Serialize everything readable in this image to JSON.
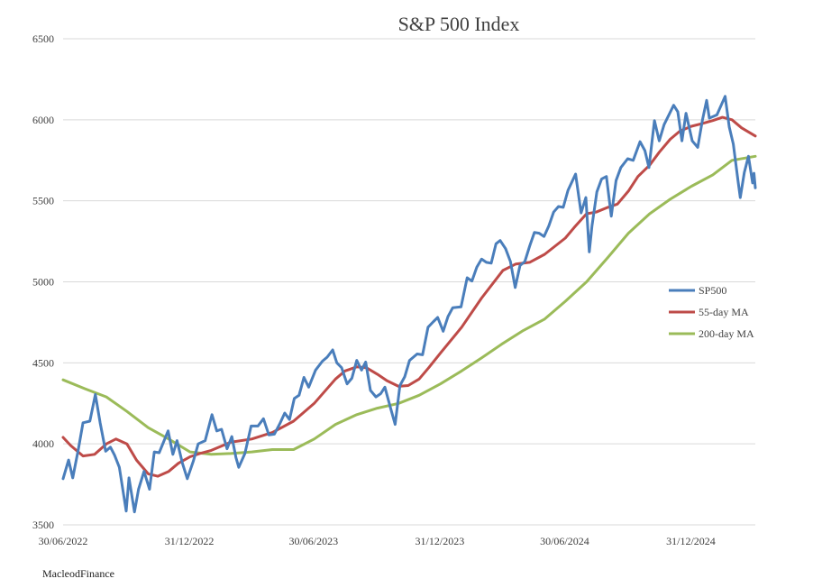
{
  "chart_data": {
    "type": "line",
    "title": "S&P 500 Index",
    "xlabel": "",
    "ylabel": "",
    "ylim": [
      3500,
      6500
    ],
    "yticks": [
      "6500",
      "6000",
      "5500",
      "5000",
      "4500",
      "4000",
      "3500"
    ],
    "xlim": [
      "2022-06-30",
      "2025-04-04"
    ],
    "xticks": [
      "30/06/2022",
      "31/12/2022",
      "30/06/2023",
      "31/12/2023",
      "30/06/2024",
      "31/12/2024"
    ],
    "grid": "horizontal",
    "legend_position": "right",
    "series": [
      {
        "name": "SP500",
        "color": "#4a7ebb",
        "points": [
          [
            "2022-06-30",
            3785
          ],
          [
            "2022-07-08",
            3900
          ],
          [
            "2022-07-14",
            3790
          ],
          [
            "2022-07-22",
            3960
          ],
          [
            "2022-07-29",
            4130
          ],
          [
            "2022-08-08",
            4140
          ],
          [
            "2022-08-16",
            4305
          ],
          [
            "2022-08-23",
            4130
          ],
          [
            "2022-08-31",
            3955
          ],
          [
            "2022-09-07",
            3980
          ],
          [
            "2022-09-13",
            3930
          ],
          [
            "2022-09-20",
            3855
          ],
          [
            "2022-09-30",
            3585
          ],
          [
            "2022-10-04",
            3790
          ],
          [
            "2022-10-12",
            3580
          ],
          [
            "2022-10-18",
            3720
          ],
          [
            "2022-10-26",
            3830
          ],
          [
            "2022-11-03",
            3720
          ],
          [
            "2022-11-10",
            3950
          ],
          [
            "2022-11-17",
            3945
          ],
          [
            "2022-11-30",
            4080
          ],
          [
            "2022-12-07",
            3935
          ],
          [
            "2022-12-13",
            4020
          ],
          [
            "2022-12-21",
            3880
          ],
          [
            "2022-12-28",
            3785
          ],
          [
            "2023-01-06",
            3895
          ],
          [
            "2023-01-13",
            4000
          ],
          [
            "2023-01-23",
            4020
          ],
          [
            "2023-02-02",
            4180
          ],
          [
            "2023-02-09",
            4080
          ],
          [
            "2023-02-16",
            4090
          ],
          [
            "2023-02-24",
            3970
          ],
          [
            "2023-03-03",
            4045
          ],
          [
            "2023-03-09",
            3915
          ],
          [
            "2023-03-13",
            3855
          ],
          [
            "2023-03-22",
            3940
          ],
          [
            "2023-03-31",
            4110
          ],
          [
            "2023-04-10",
            4110
          ],
          [
            "2023-04-18",
            4155
          ],
          [
            "2023-04-26",
            4055
          ],
          [
            "2023-05-04",
            4060
          ],
          [
            "2023-05-12",
            4125
          ],
          [
            "2023-05-19",
            4190
          ],
          [
            "2023-05-26",
            4150
          ],
          [
            "2023-06-02",
            4280
          ],
          [
            "2023-06-09",
            4300
          ],
          [
            "2023-06-16",
            4410
          ],
          [
            "2023-06-23",
            4350
          ],
          [
            "2023-07-03",
            4455
          ],
          [
            "2023-07-13",
            4510
          ],
          [
            "2023-07-20",
            4535
          ],
          [
            "2023-07-28",
            4580
          ],
          [
            "2023-08-03",
            4500
          ],
          [
            "2023-08-10",
            4470
          ],
          [
            "2023-08-18",
            4370
          ],
          [
            "2023-08-25",
            4405
          ],
          [
            "2023-09-01",
            4515
          ],
          [
            "2023-09-08",
            4455
          ],
          [
            "2023-09-14",
            4505
          ],
          [
            "2023-09-21",
            4330
          ],
          [
            "2023-09-29",
            4290
          ],
          [
            "2023-10-06",
            4310
          ],
          [
            "2023-10-12",
            4350
          ],
          [
            "2023-10-20",
            4225
          ],
          [
            "2023-10-27",
            4120
          ],
          [
            "2023-11-03",
            4360
          ],
          [
            "2023-11-10",
            4415
          ],
          [
            "2023-11-17",
            4515
          ],
          [
            "2023-11-28",
            4555
          ],
          [
            "2023-12-06",
            4550
          ],
          [
            "2023-12-14",
            4720
          ],
          [
            "2023-12-22",
            4755
          ],
          [
            "2023-12-28",
            4780
          ],
          [
            "2024-01-05",
            4695
          ],
          [
            "2024-01-12",
            4785
          ],
          [
            "2024-01-19",
            4840
          ],
          [
            "2024-01-31",
            4845
          ],
          [
            "2024-02-09",
            5025
          ],
          [
            "2024-02-16",
            5005
          ],
          [
            "2024-02-23",
            5090
          ],
          [
            "2024-03-01",
            5140
          ],
          [
            "2024-03-08",
            5120
          ],
          [
            "2024-03-15",
            5115
          ],
          [
            "2024-03-22",
            5235
          ],
          [
            "2024-03-28",
            5255
          ],
          [
            "2024-04-05",
            5205
          ],
          [
            "2024-04-12",
            5125
          ],
          [
            "2024-04-19",
            4965
          ],
          [
            "2024-04-26",
            5100
          ],
          [
            "2024-05-03",
            5125
          ],
          [
            "2024-05-10",
            5220
          ],
          [
            "2024-05-17",
            5305
          ],
          [
            "2024-05-24",
            5300
          ],
          [
            "2024-05-31",
            5280
          ],
          [
            "2024-06-07",
            5345
          ],
          [
            "2024-06-14",
            5430
          ],
          [
            "2024-06-21",
            5465
          ],
          [
            "2024-06-28",
            5460
          ],
          [
            "2024-07-05",
            5565
          ],
          [
            "2024-07-16",
            5665
          ],
          [
            "2024-07-24",
            5425
          ],
          [
            "2024-07-31",
            5520
          ],
          [
            "2024-08-05",
            5185
          ],
          [
            "2024-08-09",
            5345
          ],
          [
            "2024-08-16",
            5555
          ],
          [
            "2024-08-23",
            5635
          ],
          [
            "2024-08-30",
            5650
          ],
          [
            "2024-09-06",
            5405
          ],
          [
            "2024-09-13",
            5625
          ],
          [
            "2024-09-20",
            5705
          ],
          [
            "2024-09-30",
            5760
          ],
          [
            "2024-10-08",
            5750
          ],
          [
            "2024-10-18",
            5865
          ],
          [
            "2024-10-25",
            5810
          ],
          [
            "2024-10-31",
            5705
          ],
          [
            "2024-11-08",
            5995
          ],
          [
            "2024-11-15",
            5870
          ],
          [
            "2024-11-22",
            5970
          ],
          [
            "2024-12-06",
            6090
          ],
          [
            "2024-12-12",
            6050
          ],
          [
            "2024-12-18",
            5870
          ],
          [
            "2024-12-24",
            6040
          ],
          [
            "2025-01-02",
            5870
          ],
          [
            "2025-01-10",
            5830
          ],
          [
            "2025-01-17",
            6000
          ],
          [
            "2025-01-23",
            6120
          ],
          [
            "2025-01-27",
            6010
          ],
          [
            "2025-02-07",
            6030
          ],
          [
            "2025-02-19",
            6145
          ],
          [
            "2025-02-25",
            5955
          ],
          [
            "2025-03-03",
            5850
          ],
          [
            "2025-03-10",
            5615
          ],
          [
            "2025-03-13",
            5520
          ],
          [
            "2025-03-19",
            5675
          ],
          [
            "2025-03-25",
            5775
          ],
          [
            "2025-03-31",
            5610
          ],
          [
            "2025-04-02",
            5670
          ],
          [
            "2025-04-04",
            5580
          ]
        ]
      },
      {
        "name": "55-day MA",
        "color": "#be4b48",
        "points": [
          [
            "2022-06-30",
            4040
          ],
          [
            "2022-07-11",
            3990
          ],
          [
            "2022-07-29",
            3925
          ],
          [
            "2022-08-15",
            3935
          ],
          [
            "2022-09-01",
            4000
          ],
          [
            "2022-09-15",
            4030
          ],
          [
            "2022-10-01",
            4000
          ],
          [
            "2022-10-15",
            3900
          ],
          [
            "2022-11-01",
            3815
          ],
          [
            "2022-11-15",
            3800
          ],
          [
            "2022-12-01",
            3830
          ],
          [
            "2022-12-15",
            3880
          ],
          [
            "2023-01-01",
            3920
          ],
          [
            "2023-01-15",
            3940
          ],
          [
            "2023-02-01",
            3960
          ],
          [
            "2023-03-01",
            4010
          ],
          [
            "2023-04-01",
            4030
          ],
          [
            "2023-05-01",
            4070
          ],
          [
            "2023-06-01",
            4140
          ],
          [
            "2023-07-01",
            4250
          ],
          [
            "2023-08-01",
            4400
          ],
          [
            "2023-08-15",
            4450
          ],
          [
            "2023-09-01",
            4475
          ],
          [
            "2023-09-15",
            4470
          ],
          [
            "2023-10-01",
            4430
          ],
          [
            "2023-10-15",
            4390
          ],
          [
            "2023-11-01",
            4355
          ],
          [
            "2023-11-15",
            4360
          ],
          [
            "2023-12-01",
            4400
          ],
          [
            "2023-12-15",
            4470
          ],
          [
            "2024-01-01",
            4560
          ],
          [
            "2024-02-01",
            4720
          ],
          [
            "2024-03-01",
            4900
          ],
          [
            "2024-04-01",
            5070
          ],
          [
            "2024-04-20",
            5110
          ],
          [
            "2024-05-10",
            5120
          ],
          [
            "2024-06-01",
            5170
          ],
          [
            "2024-07-01",
            5270
          ],
          [
            "2024-07-15",
            5340
          ],
          [
            "2024-08-01",
            5420
          ],
          [
            "2024-08-15",
            5430
          ],
          [
            "2024-09-01",
            5460
          ],
          [
            "2024-09-15",
            5480
          ],
          [
            "2024-10-01",
            5560
          ],
          [
            "2024-10-15",
            5650
          ],
          [
            "2024-11-01",
            5720
          ],
          [
            "2024-11-15",
            5800
          ],
          [
            "2024-12-01",
            5880
          ],
          [
            "2024-12-15",
            5930
          ],
          [
            "2025-01-01",
            5960
          ],
          [
            "2025-01-15",
            5975
          ],
          [
            "2025-02-01",
            5995
          ],
          [
            "2025-02-15",
            6015
          ],
          [
            "2025-03-01",
            6000
          ],
          [
            "2025-03-15",
            5950
          ],
          [
            "2025-04-04",
            5900
          ]
        ]
      },
      {
        "name": "200-day MA",
        "color": "#9bbb59",
        "points": [
          [
            "2022-06-30",
            4395
          ],
          [
            "2022-08-01",
            4340
          ],
          [
            "2022-09-01",
            4290
          ],
          [
            "2022-10-01",
            4200
          ],
          [
            "2022-11-01",
            4100
          ],
          [
            "2022-12-01",
            4030
          ],
          [
            "2023-01-01",
            3950
          ],
          [
            "2023-02-01",
            3935
          ],
          [
            "2023-03-01",
            3940
          ],
          [
            "2023-04-01",
            3950
          ],
          [
            "2023-05-01",
            3965
          ],
          [
            "2023-06-01",
            3965
          ],
          [
            "2023-07-01",
            4030
          ],
          [
            "2023-08-01",
            4120
          ],
          [
            "2023-09-01",
            4180
          ],
          [
            "2023-10-01",
            4220
          ],
          [
            "2023-11-01",
            4250
          ],
          [
            "2023-12-01",
            4300
          ],
          [
            "2024-01-01",
            4370
          ],
          [
            "2024-02-01",
            4450
          ],
          [
            "2024-03-01",
            4530
          ],
          [
            "2024-04-01",
            4620
          ],
          [
            "2024-05-01",
            4700
          ],
          [
            "2024-06-01",
            4770
          ],
          [
            "2024-07-01",
            4880
          ],
          [
            "2024-08-01",
            5000
          ],
          [
            "2024-09-01",
            5150
          ],
          [
            "2024-10-01",
            5300
          ],
          [
            "2024-11-01",
            5420
          ],
          [
            "2024-12-01",
            5510
          ],
          [
            "2025-01-01",
            5590
          ],
          [
            "2025-02-01",
            5660
          ],
          [
            "2025-03-01",
            5750
          ],
          [
            "2025-04-04",
            5775
          ]
        ]
      }
    ]
  },
  "footer": "MacleodFinance"
}
